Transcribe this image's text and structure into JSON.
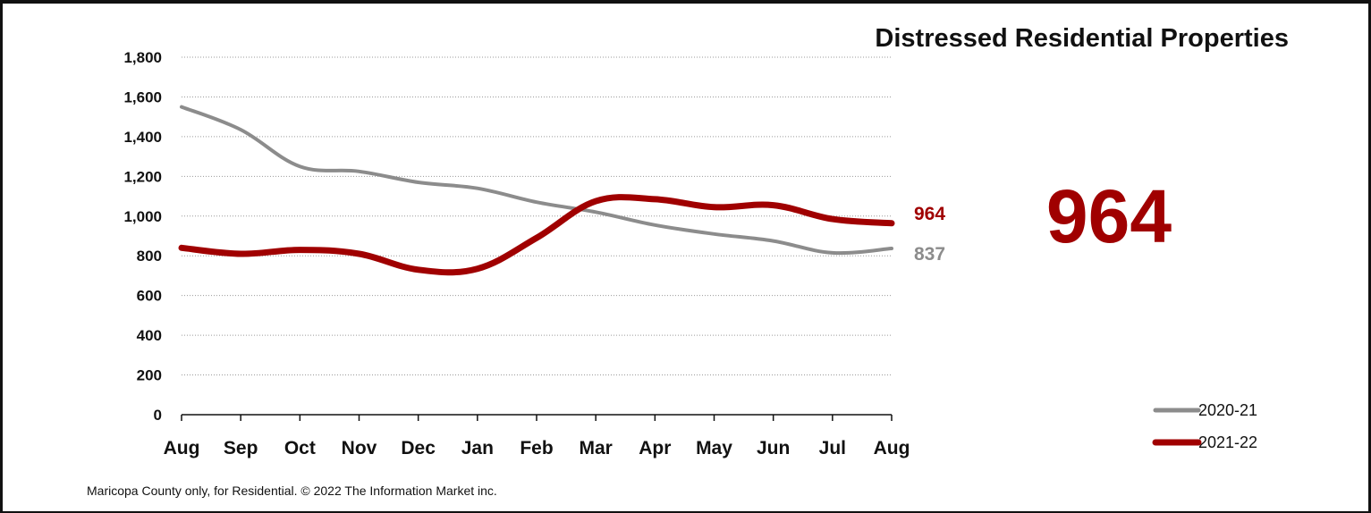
{
  "chart_data": {
    "type": "line",
    "title": "Distressed Residential Properties",
    "xlabel": "",
    "ylabel": "",
    "categories": [
      "Aug",
      "Sep",
      "Oct",
      "Nov",
      "Dec",
      "Jan",
      "Feb",
      "Mar",
      "Apr",
      "May",
      "Jun",
      "Jul",
      "Aug"
    ],
    "ylim": [
      0,
      1800
    ],
    "yticks": [
      "0",
      "200",
      "400",
      "600",
      "800",
      "1,000",
      "1,200",
      "1,400",
      "1,600",
      "1,800"
    ],
    "ytick_values": [
      0,
      200,
      400,
      600,
      800,
      1000,
      1200,
      1400,
      1600,
      1800
    ],
    "grid": "horizontal dotted",
    "legend_position": "bottom-right",
    "series": [
      {
        "name": "2020-21",
        "color": "#8c8c8c",
        "values": [
          1550,
          1435,
          1250,
          1225,
          1170,
          1140,
          1070,
          1020,
          955,
          910,
          875,
          815,
          837
        ]
      },
      {
        "name": "2021-22",
        "color": "#a00000",
        "values": [
          840,
          810,
          830,
          810,
          730,
          735,
          890,
          1075,
          1085,
          1045,
          1055,
          985,
          964
        ]
      }
    ],
    "end_labels": [
      {
        "text": "964",
        "color": "#a00000"
      },
      {
        "text": "837",
        "color": "#8c8c8c"
      }
    ],
    "highlight": {
      "value": "964",
      "color": "#a00000"
    }
  },
  "footnote": "Maricopa County only, for Residential. © 2022 The Information Market inc."
}
